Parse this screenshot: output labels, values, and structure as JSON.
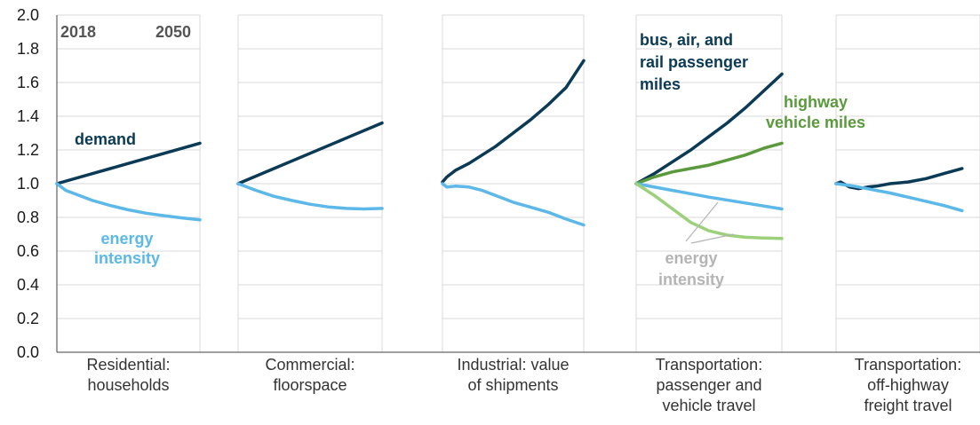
{
  "colors": {
    "demand": "#0a3a55",
    "energy_intensity": "#5bb8e8",
    "highway": "#5a9a3c",
    "highway_intensity": "#9cd07a",
    "gray_label": "#b4b4b4",
    "grid": "#d9d9d9",
    "axis": "#404040"
  },
  "chart_data": {
    "type": "line",
    "title": "",
    "ylim": [
      0,
      2.0
    ],
    "yticks": [
      "0.0",
      "0.2",
      "0.4",
      "0.6",
      "0.8",
      "1.0",
      "1.2",
      "1.4",
      "1.6",
      "1.8",
      "2.0"
    ],
    "x_start_label": "2018",
    "x_end_label": "2050",
    "grid": true,
    "panels": [
      {
        "category": [
          "Residential:",
          "households"
        ],
        "series": [
          {
            "key": "demand",
            "x": [
              2018,
              2026,
              2034,
              2042,
              2050
            ],
            "values": [
              1.0,
              1.06,
              1.12,
              1.18,
              1.24
            ]
          },
          {
            "key": "energy_intensity",
            "x": [
              2018,
              2020,
              2022,
              2026,
              2030,
              2034,
              2038,
              2042,
              2046,
              2050
            ],
            "values": [
              1.0,
              0.96,
              0.94,
              0.9,
              0.87,
              0.845,
              0.825,
              0.81,
              0.797,
              0.785
            ]
          }
        ]
      },
      {
        "category": [
          "Commercial:",
          "floorspace"
        ],
        "series": [
          {
            "key": "demand",
            "x": [
              2018,
              2026,
              2034,
              2042,
              2050
            ],
            "values": [
              1.0,
              1.09,
              1.18,
              1.27,
              1.36
            ]
          },
          {
            "key": "energy_intensity",
            "x": [
              2018,
              2022,
              2026,
              2030,
              2034,
              2038,
              2042,
              2046,
              2050
            ],
            "values": [
              1.0,
              0.96,
              0.925,
              0.9,
              0.878,
              0.862,
              0.853,
              0.85,
              0.853
            ]
          }
        ]
      },
      {
        "category": [
          "Industrial: value",
          "of shipments"
        ],
        "series": [
          {
            "key": "demand",
            "x": [
              2018,
              2019,
              2021,
              2024,
              2027,
              2030,
              2034,
              2038,
              2042,
              2046,
              2050
            ],
            "values": [
              1.01,
              1.04,
              1.08,
              1.12,
              1.17,
              1.22,
              1.3,
              1.38,
              1.47,
              1.57,
              1.73
            ]
          },
          {
            "key": "energy_intensity",
            "x": [
              2018,
              2019,
              2021,
              2024,
              2027,
              2030,
              2034,
              2038,
              2042,
              2046,
              2050
            ],
            "values": [
              1.0,
              0.98,
              0.985,
              0.98,
              0.96,
              0.93,
              0.89,
              0.86,
              0.83,
              0.79,
              0.755
            ]
          }
        ]
      },
      {
        "category": [
          "Transportation:",
          "passenger and",
          "vehicle travel"
        ],
        "series": [
          {
            "key": "demand",
            "x": [
              2018,
              2022,
              2026,
              2030,
              2034,
              2038,
              2042,
              2046,
              2050
            ],
            "values": [
              1.0,
              1.06,
              1.13,
              1.2,
              1.28,
              1.36,
              1.45,
              1.55,
              1.65
            ]
          },
          {
            "key": "highway",
            "x": [
              2018,
              2022,
              2026,
              2030,
              2034,
              2038,
              2042,
              2046,
              2050
            ],
            "values": [
              1.0,
              1.04,
              1.07,
              1.09,
              1.11,
              1.14,
              1.17,
              1.21,
              1.24
            ]
          },
          {
            "key": "energy_intensity",
            "x": [
              2018,
              2026,
              2034,
              2042,
              2050
            ],
            "values": [
              1.0,
              0.96,
              0.92,
              0.885,
              0.85
            ]
          },
          {
            "key": "highway_intensity",
            "x": [
              2018,
              2022,
              2026,
              2030,
              2034,
              2038,
              2042,
              2046,
              2050
            ],
            "values": [
              1.0,
              0.93,
              0.85,
              0.77,
              0.72,
              0.695,
              0.682,
              0.678,
              0.675
            ]
          }
        ]
      },
      {
        "category": [
          "Transportation:",
          "off-highway",
          "freight travel"
        ],
        "series": [
          {
            "key": "demand",
            "x": [
              2018,
              2019,
              2021,
              2023,
              2025,
              2027,
              2030,
              2034,
              2038,
              2042,
              2046
            ],
            "values": [
              1.0,
              1.01,
              0.98,
              0.97,
              0.98,
              0.985,
              1.0,
              1.01,
              1.03,
              1.06,
              1.09
            ]
          },
          {
            "key": "energy_intensity",
            "x": [
              2018,
              2022,
              2026,
              2030,
              2034,
              2038,
              2042,
              2046
            ],
            "values": [
              1.0,
              0.985,
              0.965,
              0.945,
              0.92,
              0.895,
              0.87,
              0.84
            ]
          }
        ]
      }
    ],
    "annotations": {
      "demand": [
        "demand"
      ],
      "energy_intensity": [
        "energy",
        "intensity"
      ],
      "passenger": [
        "bus, air, and",
        "rail passenger",
        "miles"
      ],
      "highway": [
        "highway",
        "vehicle miles"
      ],
      "gray_intensity": [
        "energy",
        "intensity"
      ]
    }
  }
}
